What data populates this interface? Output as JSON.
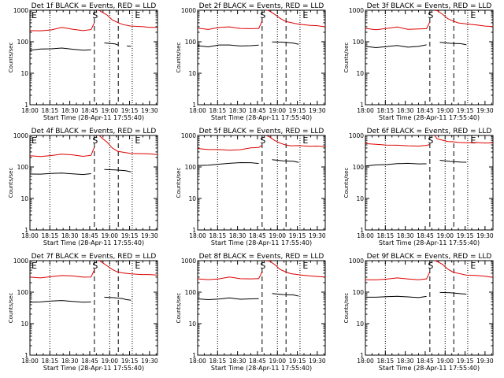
{
  "figure": {
    "background": "#ffffff",
    "axis_color": "#000000",
    "colors": {
      "events": "#000000",
      "lld": "#dd0000"
    }
  },
  "chart_data": [
    {
      "type": "line",
      "title": "Det 1f BLACK = Events, RED = LLD",
      "xlabel": "Start Time (28-Apr-11 17:55:40)",
      "ylabel": "Counts/sec",
      "yscale": "log",
      "ylim": [
        1,
        1000
      ],
      "xticks": [
        "18:00",
        "18:15",
        "18:30",
        "18:45",
        "19:00",
        "19:15",
        "19:30"
      ],
      "yticks": [
        "1",
        "10",
        "100",
        "1000"
      ],
      "markers": [
        {
          "label": "E",
          "x": 0
        },
        {
          "label": "S",
          "x": 50
        },
        {
          "label": "E",
          "x": 82
        }
      ],
      "series": [
        {
          "name": "Events",
          "color": "#000000",
          "x": [
            0,
            8,
            16,
            24,
            32,
            40,
            46,
            48.5,
            56,
            64,
            66.5,
            71,
            73,
            76
          ],
          "y": [
            55,
            58,
            60,
            62,
            58,
            55,
            55,
            null,
            90,
            85,
            80,
            null,
            75,
            70
          ]
        },
        {
          "name": "LLD",
          "color": "#dd0000",
          "x": [
            0,
            8,
            16,
            24,
            32,
            40,
            46,
            48.5,
            49,
            52,
            54,
            58,
            62,
            66,
            70,
            76,
            84,
            90,
            96
          ],
          "y": [
            230,
            220,
            240,
            280,
            250,
            230,
            240,
            400,
            null,
            1000,
            900,
            700,
            500,
            400,
            350,
            320,
            300,
            290,
            280
          ]
        }
      ]
    },
    {
      "type": "line",
      "title": "Det 2f BLACK = Events, RED = LLD",
      "xlabel": "Start Time (28-Apr-11 17:55:40)",
      "ylabel": "Counts/sec",
      "yscale": "log",
      "ylim": [
        1,
        1000
      ],
      "xticks": [
        "18:00",
        "18:15",
        "18:30",
        "18:45",
        "19:00",
        "19:15",
        "19:30"
      ],
      "yticks": [
        "1",
        "10",
        "100",
        "1000"
      ],
      "markers": [
        {
          "label": "S",
          "x": 50
        },
        {
          "label": "E",
          "x": 82
        }
      ],
      "series": [
        {
          "name": "Events",
          "color": "#000000",
          "x": [
            0,
            8,
            16,
            24,
            32,
            40,
            46,
            48.5,
            56,
            64,
            72,
            76
          ],
          "y": [
            75,
            70,
            78,
            80,
            72,
            75,
            80,
            null,
            100,
            95,
            90,
            85
          ]
        },
        {
          "name": "LLD",
          "color": "#dd0000",
          "x": [
            0,
            8,
            16,
            24,
            32,
            40,
            46,
            48.5,
            49,
            52,
            54,
            58,
            62,
            66,
            70,
            76,
            84,
            90,
            96
          ],
          "y": [
            270,
            250,
            280,
            300,
            260,
            260,
            270,
            450,
            null,
            1000,
            950,
            750,
            550,
            450,
            400,
            360,
            340,
            320,
            300
          ]
        }
      ]
    },
    {
      "type": "line",
      "title": "Det 3f BLACK = Events, RED = LLD",
      "xlabel": "Start Time (28-Apr-11 17:55:40)",
      "ylabel": "Counts/sec",
      "yscale": "log",
      "ylim": [
        1,
        1000
      ],
      "xticks": [
        "18:00",
        "18:15",
        "18:30",
        "18:45",
        "19:00",
        "19:15",
        "19:30"
      ],
      "yticks": [
        "1",
        "10",
        "100",
        "1000"
      ],
      "markers": [
        {
          "label": "S",
          "x": 50
        },
        {
          "label": "E",
          "x": 82
        }
      ],
      "series": [
        {
          "name": "Events",
          "color": "#000000",
          "x": [
            0,
            8,
            16,
            24,
            32,
            40,
            46,
            48.5,
            56,
            64,
            72,
            76
          ],
          "y": [
            70,
            65,
            72,
            75,
            68,
            70,
            80,
            null,
            95,
            90,
            85,
            80
          ]
        },
        {
          "name": "LLD",
          "color": "#dd0000",
          "x": [
            0,
            8,
            16,
            24,
            32,
            40,
            46,
            48.5,
            49,
            52,
            54,
            58,
            62,
            66,
            70,
            76,
            84,
            90,
            96
          ],
          "y": [
            260,
            240,
            270,
            290,
            250,
            250,
            260,
            430,
            null,
            1000,
            950,
            750,
            550,
            450,
            400,
            360,
            340,
            320,
            300
          ]
        }
      ]
    },
    {
      "type": "line",
      "title": "Det 4f BLACK = Events, RED = LLD",
      "xlabel": "Start Time (28-Apr-11 17:55:40)",
      "ylabel": "Counts/sec",
      "yscale": "log",
      "ylim": [
        1,
        1000
      ],
      "xticks": [
        "18:00",
        "18:15",
        "18:30",
        "18:45",
        "19:00",
        "19:15",
        "19:30"
      ],
      "yticks": [
        "1",
        "10",
        "100",
        "1000"
      ],
      "markers": [
        {
          "label": "E",
          "x": 0
        },
        {
          "label": "S",
          "x": 50
        },
        {
          "label": "E",
          "x": 82
        }
      ],
      "series": [
        {
          "name": "Events",
          "color": "#000000",
          "x": [
            0,
            8,
            16,
            24,
            32,
            40,
            46,
            48.5,
            56,
            64,
            70,
            72,
            76
          ],
          "y": [
            60,
            58,
            62,
            65,
            60,
            58,
            60,
            null,
            85,
            80,
            78,
            75,
            70
          ]
        },
        {
          "name": "LLD",
          "color": "#dd0000",
          "x": [
            0,
            8,
            16,
            24,
            32,
            40,
            46,
            48.5,
            49,
            52,
            54,
            58,
            62,
            66,
            70,
            76,
            84,
            90,
            96
          ],
          "y": [
            230,
            210,
            230,
            260,
            240,
            220,
            230,
            420,
            null,
            1000,
            850,
            600,
            400,
            320,
            290,
            270,
            260,
            260,
            250
          ]
        }
      ]
    },
    {
      "type": "line",
      "title": "Det 5f BLACK = Events, RED = LLD",
      "xlabel": "Start Time (28-Apr-11 17:55:40)",
      "ylabel": "Counts/sec",
      "yscale": "log",
      "ylim": [
        1,
        1000
      ],
      "xticks": [
        "18:00",
        "18:15",
        "18:30",
        "18:45",
        "19:00",
        "19:15",
        "19:30"
      ],
      "yticks": [
        "1",
        "10",
        "100",
        "1000"
      ],
      "markers": [
        {
          "label": "S",
          "x": 50
        },
        {
          "label": "E",
          "x": 82
        }
      ],
      "series": [
        {
          "name": "Events",
          "color": "#000000",
          "x": [
            0,
            8,
            16,
            24,
            32,
            40,
            46,
            48.5,
            56,
            64,
            72,
            76
          ],
          "y": [
            110,
            115,
            120,
            130,
            140,
            135,
            130,
            null,
            170,
            160,
            150,
            140
          ]
        },
        {
          "name": "LLD",
          "color": "#dd0000",
          "x": [
            0,
            8,
            16,
            24,
            32,
            40,
            46,
            48.5,
            49,
            52,
            54,
            58,
            62,
            66,
            70,
            76,
            84,
            90,
            96
          ],
          "y": [
            380,
            360,
            350,
            340,
            360,
            400,
            420,
            480,
            null,
            1000,
            900,
            700,
            560,
            500,
            480,
            470,
            460,
            450,
            440
          ]
        }
      ]
    },
    {
      "type": "line",
      "title": "Det 6f BLACK = Events, RED = LLD",
      "xlabel": "Start Time (28-Apr-11 17:55:40)",
      "ylabel": "Counts/sec",
      "yscale": "log",
      "ylim": [
        1,
        1000
      ],
      "xticks": [
        "18:00",
        "18:15",
        "18:30",
        "18:45",
        "19:00",
        "19:15",
        "19:30"
      ],
      "yticks": [
        "1",
        "10",
        "100",
        "1000"
      ],
      "markers": [
        {
          "label": "S",
          "x": 50
        },
        {
          "label": "E",
          "x": 82
        }
      ],
      "series": [
        {
          "name": "Events",
          "color": "#000000",
          "x": [
            0,
            8,
            16,
            24,
            32,
            40,
            46,
            48.5,
            56,
            64,
            72,
            76
          ],
          "y": [
            110,
            115,
            120,
            125,
            130,
            128,
            125,
            null,
            160,
            150,
            145,
            140
          ]
        },
        {
          "name": "LLD",
          "color": "#dd0000",
          "x": [
            0,
            8,
            16,
            24,
            32,
            40,
            46,
            48.5,
            49,
            52,
            54,
            58,
            62,
            66,
            70,
            76,
            84,
            90,
            96
          ],
          "y": [
            560,
            520,
            500,
            480,
            470,
            470,
            480,
            520,
            null,
            1000,
            800,
            700,
            650,
            620,
            600,
            600,
            590,
            580,
            570
          ]
        }
      ]
    },
    {
      "type": "line",
      "title": "Det 7f BLACK = Events, RED = LLD",
      "xlabel": "Start Time (28-Apr-11 17:55:40)",
      "ylabel": "Counts/sec",
      "yscale": "log",
      "ylim": [
        1,
        1000
      ],
      "xticks": [
        "18:00",
        "18:15",
        "18:30",
        "18:45",
        "19:00",
        "19:15",
        "19:30"
      ],
      "yticks": [
        "1",
        "10",
        "100",
        "1000"
      ],
      "markers": [
        {
          "label": "E",
          "x": 0
        },
        {
          "label": "S",
          "x": 50
        },
        {
          "label": "E",
          "x": 82
        }
      ],
      "series": [
        {
          "name": "Events",
          "color": "#000000",
          "x": [
            0,
            8,
            16,
            24,
            32,
            40,
            46,
            48.5,
            56,
            64,
            70,
            72,
            76
          ],
          "y": [
            48,
            50,
            52,
            55,
            50,
            48,
            50,
            null,
            70,
            65,
            62,
            60,
            55
          ]
        },
        {
          "name": "LLD",
          "color": "#dd0000",
          "x": [
            0,
            8,
            16,
            24,
            32,
            40,
            46,
            48.5,
            49,
            52,
            54,
            58,
            62,
            66,
            70,
            76,
            84,
            90,
            96
          ],
          "y": [
            300,
            290,
            310,
            340,
            320,
            300,
            310,
            500,
            null,
            1000,
            900,
            700,
            520,
            440,
            400,
            380,
            370,
            360,
            350
          ]
        }
      ]
    },
    {
      "type": "line",
      "title": "Det 8f BLACK = Events, RED = LLD",
      "xlabel": "Start Time (28-Apr-11 17:55:40)",
      "ylabel": "Counts/sec",
      "yscale": "log",
      "ylim": [
        1,
        1000
      ],
      "xticks": [
        "18:00",
        "18:15",
        "18:30",
        "18:45",
        "19:00",
        "19:15",
        "19:30"
      ],
      "yticks": [
        "1",
        "10",
        "100",
        "1000"
      ],
      "markers": [
        {
          "label": "S",
          "x": 50
        },
        {
          "label": "E",
          "x": 82
        }
      ],
      "series": [
        {
          "name": "Events",
          "color": "#000000",
          "x": [
            0,
            8,
            16,
            24,
            32,
            40,
            46,
            48.5,
            56,
            64,
            72,
            76
          ],
          "y": [
            60,
            58,
            62,
            65,
            60,
            60,
            62,
            null,
            90,
            85,
            80,
            75
          ]
        },
        {
          "name": "LLD",
          "color": "#dd0000",
          "x": [
            0,
            8,
            16,
            24,
            32,
            40,
            46,
            48.5,
            49,
            52,
            54,
            58,
            62,
            66,
            70,
            76,
            84,
            90,
            96
          ],
          "y": [
            260,
            250,
            270,
            300,
            270,
            260,
            270,
            450,
            null,
            1000,
            950,
            750,
            540,
            440,
            390,
            350,
            330,
            320,
            300
          ]
        }
      ]
    },
    {
      "type": "line",
      "title": "Det 9f BLACK = Events, RED = LLD",
      "xlabel": "Start Time (28-Apr-11 17:55:40)",
      "ylabel": "Counts/sec",
      "yscale": "log",
      "ylim": [
        1,
        1000
      ],
      "xticks": [
        "18:00",
        "18:15",
        "18:30",
        "18:45",
        "19:00",
        "19:15",
        "19:30"
      ],
      "yticks": [
        "1",
        "10",
        "100",
        "1000"
      ],
      "markers": [
        {
          "label": "S",
          "x": 50
        },
        {
          "label": "E",
          "x": 82
        }
      ],
      "series": [
        {
          "name": "Events",
          "color": "#000000",
          "x": [
            0,
            8,
            16,
            24,
            32,
            40,
            46,
            48.5,
            56,
            64,
            72,
            76
          ],
          "y": [
            70,
            68,
            72,
            75,
            70,
            68,
            72,
            null,
            100,
            95,
            90,
            85
          ]
        },
        {
          "name": "LLD",
          "color": "#dd0000",
          "x": [
            0,
            8,
            16,
            24,
            32,
            40,
            46,
            48.5,
            49,
            52,
            54,
            58,
            62,
            66,
            70,
            76,
            84,
            90,
            96
          ],
          "y": [
            250,
            240,
            260,
            290,
            260,
            250,
            260,
            440,
            null,
            1000,
            950,
            750,
            540,
            440,
            390,
            350,
            330,
            320,
            300
          ]
        }
      ]
    }
  ]
}
